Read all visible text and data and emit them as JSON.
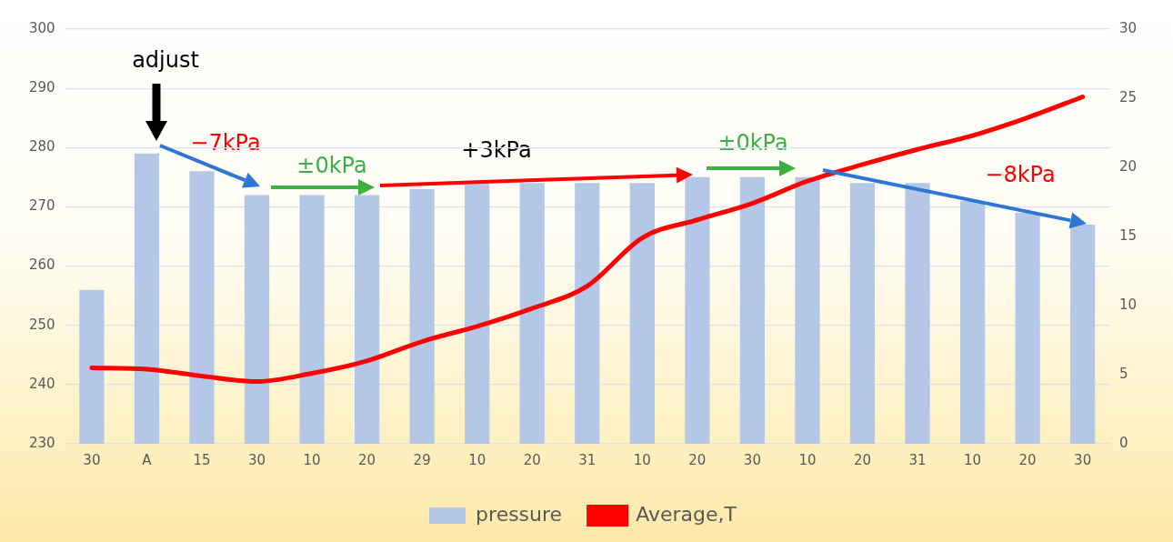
{
  "chart_data": {
    "type": "bar",
    "categories": [
      "30",
      "A",
      "15",
      "30",
      "10",
      "20",
      "29",
      "10",
      "20",
      "31",
      "10",
      "20",
      "30",
      "10",
      "20",
      "31",
      "10",
      "20",
      "30"
    ],
    "series": [
      {
        "name": "pressure",
        "color": "#b4c7e7",
        "values": [
          256,
          279,
          276,
          272,
          272,
          272,
          273,
          274,
          274,
          274,
          274,
          275,
          275,
          275,
          274,
          274,
          271,
          269,
          267
        ]
      },
      {
        "name": "Average,T",
        "type": "line",
        "axis": "y2",
        "color": "#ff0000",
        "values": [
          5.5,
          5.4,
          4.9,
          4.5,
          5.1,
          6.0,
          7.4,
          8.5,
          9.8,
          11.4,
          14.9,
          16.2,
          17.4,
          19.0,
          20.2,
          21.3,
          22.3,
          23.6,
          25.1
        ]
      }
    ],
    "ylim": [
      230,
      300
    ],
    "yticks": [
      230,
      240,
      250,
      260,
      270,
      280,
      290,
      300
    ],
    "y2lim": [
      0,
      30
    ],
    "y2ticks": [
      0,
      5,
      10,
      15,
      20,
      25,
      30
    ],
    "grid": "y",
    "legend": "bottom",
    "marker": "none",
    "annotations": [
      "adjust",
      "−7kPa",
      "±0kPa",
      "+3kPa",
      "±0kPa",
      "−8kPa"
    ]
  }
}
